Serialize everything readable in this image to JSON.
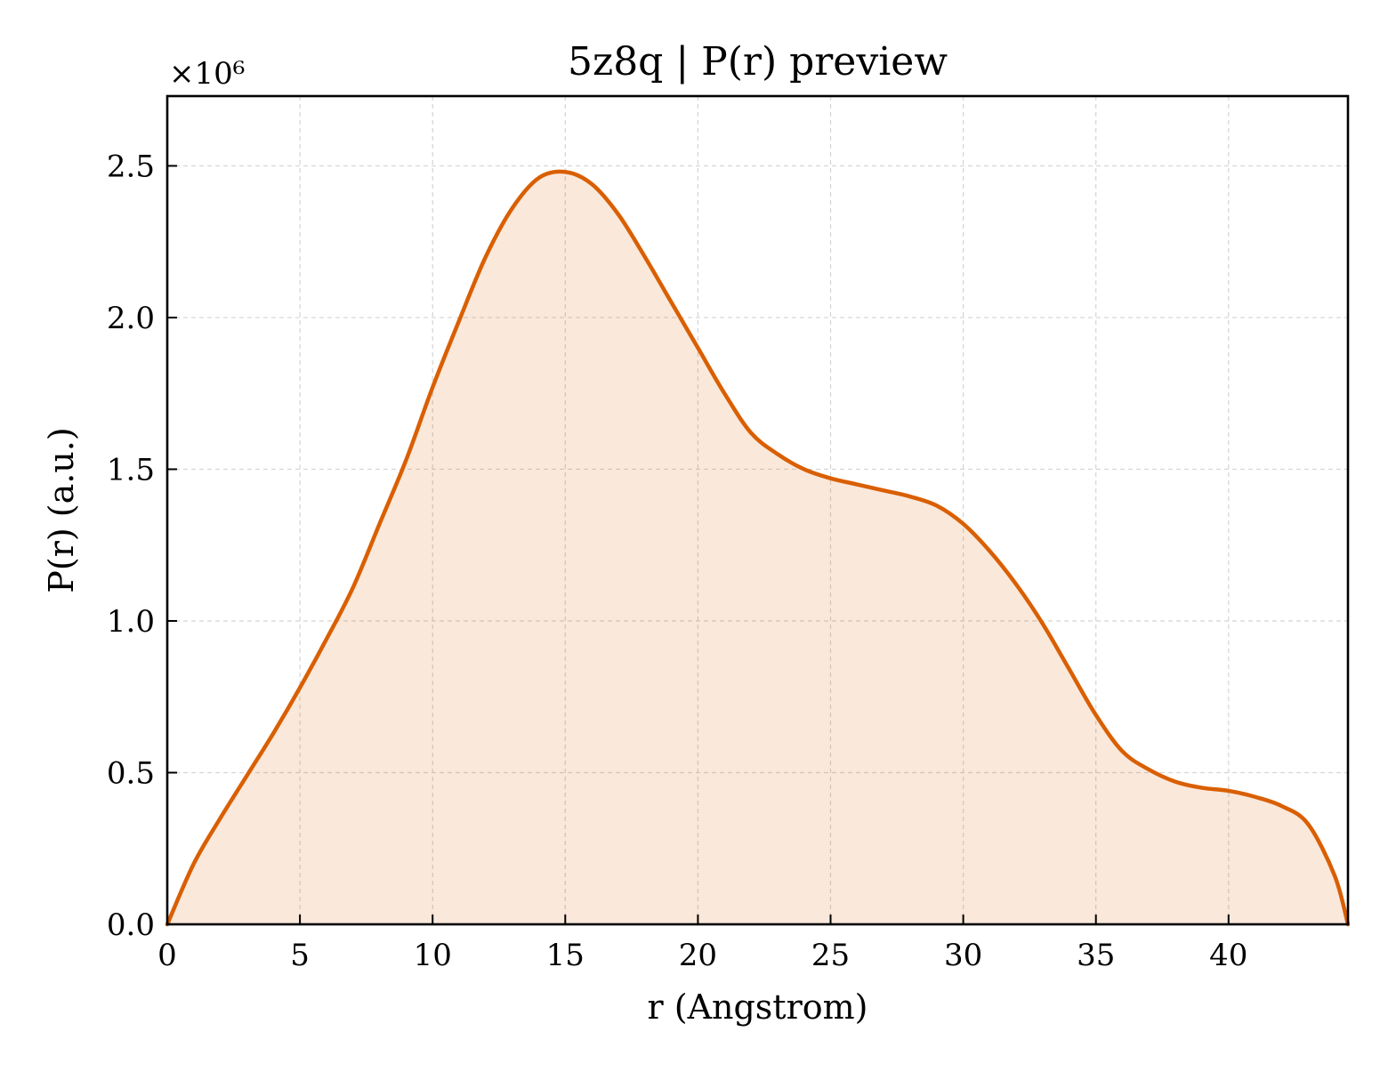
{
  "chart_data": {
    "type": "area",
    "title": "5z8q | P(r) preview",
    "xlabel": "r (Angstrom)",
    "ylabel": "P(r) (a.u.)",
    "y_offset_label": "×10⁶",
    "y_scale": 1000000,
    "xlim": [
      0,
      44.5
    ],
    "ylim": [
      0,
      2.73
    ],
    "xticks": [
      0,
      5,
      10,
      15,
      20,
      25,
      30,
      35,
      40
    ],
    "xtick_labels": [
      "0",
      "5",
      "10",
      "15",
      "20",
      "25",
      "30",
      "35",
      "40"
    ],
    "yticks": [
      0.0,
      0.5,
      1.0,
      1.5,
      2.0,
      2.5
    ],
    "ytick_labels": [
      "0.0",
      "0.5",
      "1.0",
      "1.5",
      "2.0",
      "2.5"
    ],
    "grid": true,
    "colors": {
      "line": "#d95f02",
      "fill": "#d95f02",
      "fill_opacity": 0.14
    },
    "series": [
      {
        "x": [
          0,
          1,
          2,
          3,
          4,
          5,
          6,
          7,
          8,
          9,
          10,
          11,
          12,
          13,
          14,
          15,
          16,
          17,
          18,
          19,
          20,
          21,
          22,
          23,
          24,
          25,
          26,
          27,
          28,
          29,
          30,
          31,
          32,
          33,
          34,
          35,
          36,
          37,
          38,
          39,
          40,
          41,
          42,
          43,
          44,
          44.5
        ],
        "y": [
          0.0,
          0.2,
          0.35,
          0.49,
          0.63,
          0.78,
          0.94,
          1.11,
          1.32,
          1.53,
          1.77,
          1.99,
          2.2,
          2.36,
          2.46,
          2.48,
          2.44,
          2.34,
          2.2,
          2.05,
          1.9,
          1.75,
          1.62,
          1.55,
          1.5,
          1.47,
          1.45,
          1.43,
          1.41,
          1.38,
          1.32,
          1.23,
          1.12,
          0.99,
          0.84,
          0.69,
          0.57,
          0.51,
          0.47,
          0.45,
          0.44,
          0.42,
          0.39,
          0.33,
          0.16,
          0.0
        ]
      }
    ]
  }
}
